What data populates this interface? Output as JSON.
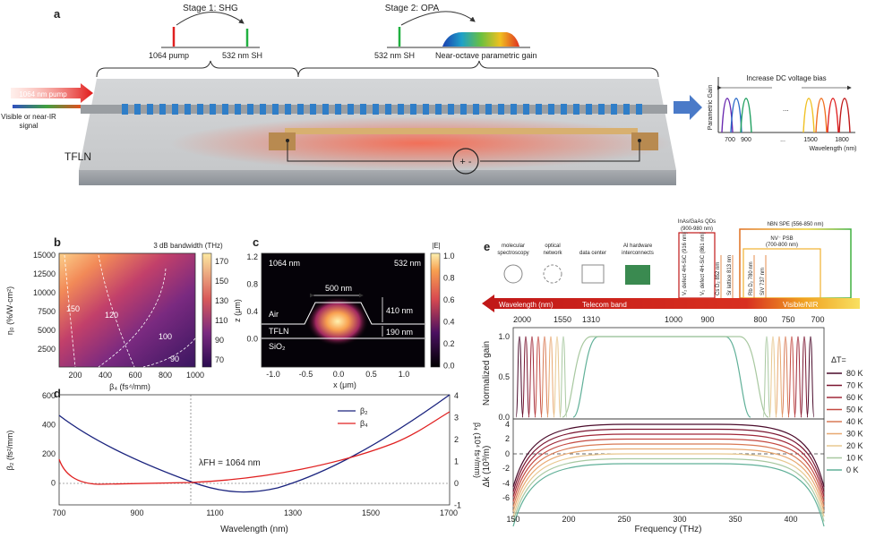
{
  "panel_a": {
    "letter": "a",
    "stage1": "Stage 1: SHG",
    "stage2": "Stage 2: OPA",
    "pump_label": "1064 pump",
    "sh_label": "532 nm SH",
    "sh2_label": "532 nm SH",
    "gain_label": "Near-octave parametric gain",
    "input_pump": "1064 nm pump",
    "input_signal_1": "Visible or near-IR",
    "input_signal_2": "signal",
    "chip_label": "TFLN",
    "inset_title": "Increase DC voltage bias",
    "inset_ylabel": "Parametric Gain",
    "inset_xlabel": "Wavelength (nm)",
    "inset_ticks": [
      "700",
      "900",
      "...",
      "1500",
      "1800"
    ],
    "inset_dots": "...",
    "source_symbol": "+ -"
  },
  "panel_b": {
    "letter": "b",
    "colorbar_title": "3 dB bandwidth (THz)",
    "ylabel": "η₀ (%/W·cm²)",
    "xlabel": "β₄ (fs⁴/mm)",
    "yticks": [
      "15000",
      "12500",
      "10000",
      "7500",
      "5000",
      "2500"
    ],
    "xticks": [
      "200",
      "400",
      "600",
      "800",
      "1000"
    ],
    "cbar_ticks": [
      "170",
      "150",
      "130",
      "110",
      "90",
      "70"
    ],
    "contours": [
      "150",
      "120",
      "100",
      "90"
    ]
  },
  "panel_c": {
    "letter": "c",
    "colorbar_title": "|E|",
    "lambda1": "1064 nm",
    "lambda2": "532 nm",
    "width_label": "500 nm",
    "height1": "410 nm",
    "height2": "190 nm",
    "layer_air": "Air",
    "layer_tfln": "TFLN",
    "layer_sio2": "SiO₂",
    "ylabel": "z (μm)",
    "xlabel": "x (μm)",
    "yticks": [
      "1.2",
      "0.8",
      "0.4",
      "0.0"
    ],
    "xticks": [
      "-1.0",
      "-0.5",
      "0.0",
      "0.5",
      "1.0"
    ],
    "cbar_ticks": [
      "1.0",
      "0.8",
      "0.6",
      "0.4",
      "0.2",
      "0.0"
    ]
  },
  "panel_d": {
    "letter": "d",
    "ylabel_left": "β₂ (fs²/mm)",
    "ylabel_right": "β₄ (10⁴ fs⁴/mm)",
    "xlabel": "Wavelength (nm)",
    "annotation": "λFH = 1064 nm",
    "legend": [
      "β₂",
      "β₄"
    ],
    "xticks": [
      "700",
      "900",
      "1100",
      "1300",
      "1500",
      "1700"
    ],
    "yticks_left": [
      "600",
      "400",
      "200",
      "0"
    ],
    "yticks_right": [
      "4",
      "3",
      "2",
      "1",
      "0",
      "-1"
    ]
  },
  "panel_e": {
    "letter": "e",
    "apps": [
      "molecular",
      "spectroscopy",
      "optical",
      "network",
      "data center",
      "AI hardware",
      "interconnects"
    ],
    "qd_label": "InAs/GaAs QDs",
    "qd_range": "(900-980 nm)",
    "hbn_label": "hBN SPE (556-850 nm)",
    "nv_label": "NV⁻ PSB",
    "nv_range": "(700-800 nm)",
    "defects": [
      "V₂ defect 4H-SiC (916 nm)",
      "V₁ defect 4H-SiC (861 nm)",
      "Cs D₂ 852 nm",
      "Sr lattice 813 nm",
      "Rb D₂ 780 nm",
      "SiV 737 nm"
    ],
    "band_wavelength": "Wavelength (nm)",
    "band_telecom": "Telecom band",
    "band_visible": "Visible/NIR",
    "top_ticks": [
      "2000",
      "1550",
      "1310",
      "1000",
      "900",
      "800",
      "750",
      "700"
    ],
    "ylabel_top": "Normalized gain",
    "ylabel_bottom": "Δk (10³/m)",
    "xlabel": "Frequency (THz)",
    "xticks": [
      "150",
      "200",
      "250",
      "300",
      "350",
      "400"
    ],
    "yticks_top": [
      "1.0",
      "0.5",
      "0.0"
    ],
    "yticks_bottom": [
      "4",
      "2",
      "0",
      "-2",
      "-4",
      "-6"
    ],
    "legend_title": "ΔT=",
    "legend": [
      "80 K",
      "70 K",
      "60 K",
      "50 K",
      "40 K",
      "30 K",
      "20 K",
      "10 K",
      "0 K"
    ],
    "legend_colors": [
      "#4a0a2a",
      "#7a1530",
      "#a02838",
      "#c44a42",
      "#d87a55",
      "#e8a870",
      "#e8c890",
      "#a8c8a0",
      "#60b098"
    ]
  }
}
